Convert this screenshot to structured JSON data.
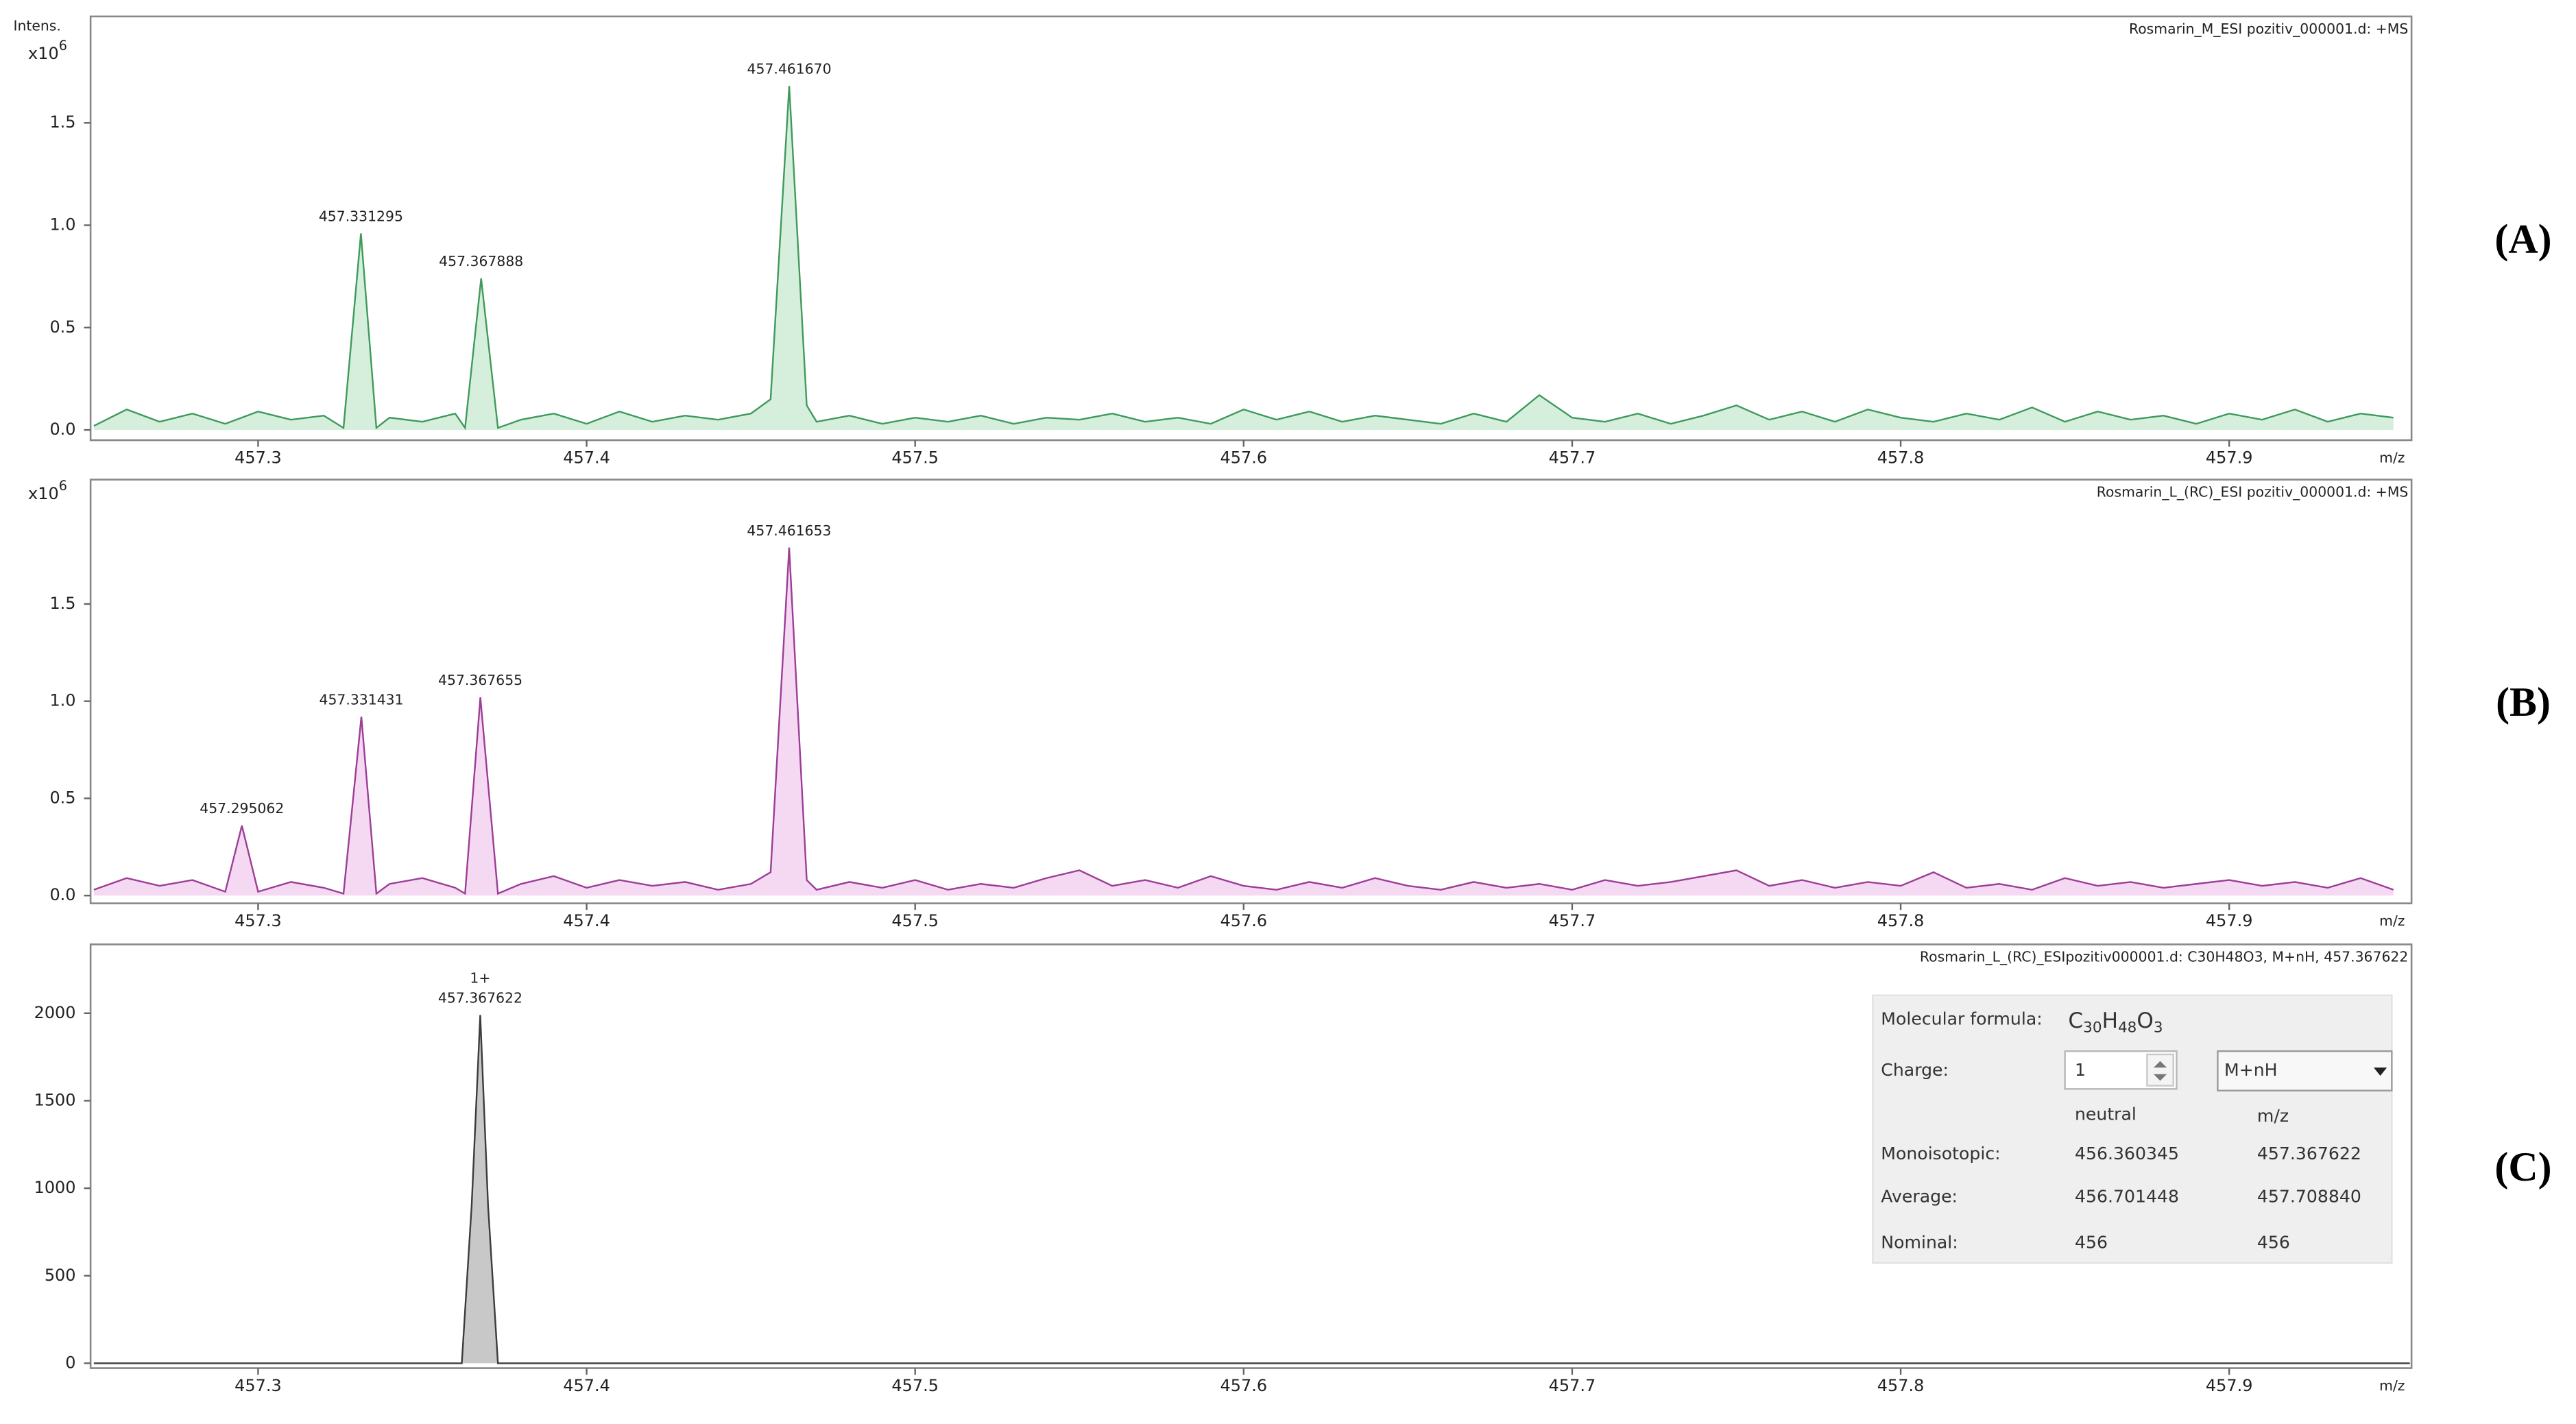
{
  "chart_data": [
    {
      "type": "line",
      "panel_label": "(A)",
      "title": "Rosmarin_M_ESI pozitiv_000001.d: +MS",
      "y_axis_label": "Intens.",
      "y_multiplier": {
        "base": "x10",
        "exponent": "6"
      },
      "x_axis_label": "m/z",
      "color": "#3f9a5c",
      "fill": "#d6efdc",
      "xlim": [
        457.249,
        457.9555
      ],
      "xticks": [
        457.3,
        457.4,
        457.5,
        457.6,
        457.7,
        457.8,
        457.9
      ],
      "ylim": [
        -0.05,
        2.02
      ],
      "yticks": [
        {
          "value": 0,
          "label": "0.0"
        },
        0.5,
        {
          "value": 1,
          "label": "1.0"
        },
        1.5
      ],
      "x": [
        457.25,
        457.26,
        457.27,
        457.28,
        457.29,
        457.3,
        457.31,
        457.32,
        457.326,
        457.331295,
        457.336,
        457.34,
        457.35,
        457.36,
        457.363,
        457.367888,
        457.373,
        457.38,
        457.39,
        457.4,
        457.41,
        457.42,
        457.43,
        457.44,
        457.45,
        457.456,
        457.46167,
        457.467,
        457.47,
        457.48,
        457.49,
        457.5,
        457.51,
        457.52,
        457.53,
        457.54,
        457.55,
        457.56,
        457.57,
        457.58,
        457.59,
        457.6,
        457.61,
        457.62,
        457.63,
        457.64,
        457.65,
        457.66,
        457.67,
        457.68,
        457.69,
        457.7,
        457.71,
        457.72,
        457.73,
        457.74,
        457.75,
        457.76,
        457.77,
        457.78,
        457.79,
        457.8,
        457.81,
        457.82,
        457.83,
        457.84,
        457.85,
        457.86,
        457.87,
        457.88,
        457.89,
        457.9,
        457.91,
        457.92,
        457.93,
        457.94,
        457.95
      ],
      "values": [
        0.02,
        0.1,
        0.04,
        0.08,
        0.03,
        0.09,
        0.05,
        0.07,
        0.01,
        0.96,
        0.01,
        0.06,
        0.04,
        0.08,
        0.01,
        0.74,
        0.01,
        0.05,
        0.08,
        0.03,
        0.09,
        0.04,
        0.07,
        0.05,
        0.08,
        0.15,
        1.68,
        0.12,
        0.04,
        0.07,
        0.03,
        0.06,
        0.04,
        0.07,
        0.03,
        0.06,
        0.05,
        0.08,
        0.04,
        0.06,
        0.03,
        0.1,
        0.05,
        0.09,
        0.04,
        0.07,
        0.05,
        0.03,
        0.08,
        0.04,
        0.17,
        0.06,
        0.04,
        0.08,
        0.03,
        0.07,
        0.12,
        0.05,
        0.09,
        0.04,
        0.1,
        0.06,
        0.04,
        0.08,
        0.05,
        0.11,
        0.04,
        0.09,
        0.05,
        0.07,
        0.03,
        0.08,
        0.05,
        0.1,
        0.04,
        0.08,
        0.06
      ],
      "annotations": [
        {
          "text": "457.331295",
          "x": 457.331295
        },
        {
          "text": "457.367888",
          "x": 457.367888
        },
        {
          "text": "457.461670",
          "x": 457.46167
        }
      ]
    },
    {
      "type": "line",
      "panel_label": "(B)",
      "title": "Rosmarin_L_(RC)_ESI pozitiv_000001.d: +MS",
      "y_multiplier": {
        "base": "x10",
        "exponent": "6"
      },
      "x_axis_label": "m/z",
      "color": "#9c3d98",
      "fill": "#f5d8f1",
      "xlim": [
        457.249,
        457.9555
      ],
      "xticks": [
        457.3,
        457.4,
        457.5,
        457.6,
        457.7,
        457.8,
        457.9
      ],
      "ylim": [
        -0.04,
        2.14
      ],
      "yticks": [
        {
          "value": 0,
          "label": "0.0"
        },
        0.5,
        {
          "value": 1,
          "label": "1.0"
        },
        1.5
      ],
      "x": [
        457.25,
        457.26,
        457.27,
        457.28,
        457.29,
        457.295062,
        457.3,
        457.31,
        457.32,
        457.326,
        457.331431,
        457.336,
        457.34,
        457.35,
        457.36,
        457.363,
        457.367655,
        457.373,
        457.38,
        457.39,
        457.4,
        457.41,
        457.42,
        457.43,
        457.44,
        457.45,
        457.456,
        457.461653,
        457.467,
        457.47,
        457.48,
        457.49,
        457.5,
        457.51,
        457.52,
        457.53,
        457.54,
        457.55,
        457.56,
        457.57,
        457.58,
        457.59,
        457.6,
        457.61,
        457.62,
        457.63,
        457.64,
        457.65,
        457.66,
        457.67,
        457.68,
        457.69,
        457.7,
        457.71,
        457.72,
        457.73,
        457.74,
        457.75,
        457.76,
        457.77,
        457.78,
        457.79,
        457.8,
        457.81,
        457.82,
        457.83,
        457.84,
        457.85,
        457.86,
        457.87,
        457.88,
        457.89,
        457.9,
        457.91,
        457.92,
        457.93,
        457.94,
        457.95
      ],
      "values": [
        0.03,
        0.09,
        0.05,
        0.08,
        0.02,
        0.36,
        0.02,
        0.07,
        0.04,
        0.01,
        0.92,
        0.01,
        0.06,
        0.09,
        0.04,
        0.01,
        1.02,
        0.01,
        0.06,
        0.1,
        0.04,
        0.08,
        0.05,
        0.07,
        0.03,
        0.06,
        0.12,
        1.79,
        0.08,
        0.03,
        0.07,
        0.04,
        0.08,
        0.03,
        0.06,
        0.04,
        0.09,
        0.13,
        0.05,
        0.08,
        0.04,
        0.1,
        0.05,
        0.03,
        0.07,
        0.04,
        0.09,
        0.05,
        0.03,
        0.07,
        0.04,
        0.06,
        0.03,
        0.08,
        0.05,
        0.07,
        0.1,
        0.13,
        0.05,
        0.08,
        0.04,
        0.07,
        0.05,
        0.12,
        0.04,
        0.06,
        0.03,
        0.09,
        0.05,
        0.07,
        0.04,
        0.06,
        0.08,
        0.05,
        0.07,
        0.04,
        0.09,
        0.03
      ],
      "annotations": [
        {
          "text": "457.295062",
          "x": 457.295062
        },
        {
          "text": "457.331431",
          "x": 457.331431
        },
        {
          "text": "457.367655",
          "x": 457.367655
        },
        {
          "text": "457.461653",
          "x": 457.461653
        }
      ]
    },
    {
      "type": "line",
      "panel_label": "(C)",
      "title": "Rosmarin_L_(RC)_ESIpozitiv000001.d: C30H48O3, M+nH, 457.367622",
      "x_axis_label": "m/z",
      "color": "#3c3c3c",
      "fill": "#c8c8c8",
      "xlim": [
        457.249,
        457.9555
      ],
      "xticks": [
        457.3,
        457.4,
        457.5,
        457.6,
        457.7,
        457.8,
        457.9
      ],
      "ylim": [
        -28,
        2393
      ],
      "yticks": [
        0,
        500,
        1000,
        1500,
        2000
      ],
      "x": [
        457.25,
        457.362,
        457.365,
        457.367622,
        457.37,
        457.373,
        457.955
      ],
      "values": [
        0,
        0,
        900,
        1990,
        900,
        0,
        0
      ],
      "annotations": [
        {
          "text": "457.367622",
          "x": 457.367622,
          "charge": "1+"
        }
      ]
    }
  ],
  "formula_box": {
    "formula_label": "Molecular formula:",
    "formula": [
      "C",
      "30",
      "H",
      "48",
      "O",
      "3"
    ],
    "charge_label": "Charge:",
    "charge": "1",
    "adduct": "M+nH",
    "columns": [
      "neutral",
      "m/z"
    ],
    "rows": [
      [
        "Monoisotopic:",
        "456.360345",
        "457.367622"
      ],
      [
        "Average:",
        "456.701448",
        "457.708840"
      ],
      [
        "Nominal:",
        "456",
        "456"
      ]
    ]
  }
}
